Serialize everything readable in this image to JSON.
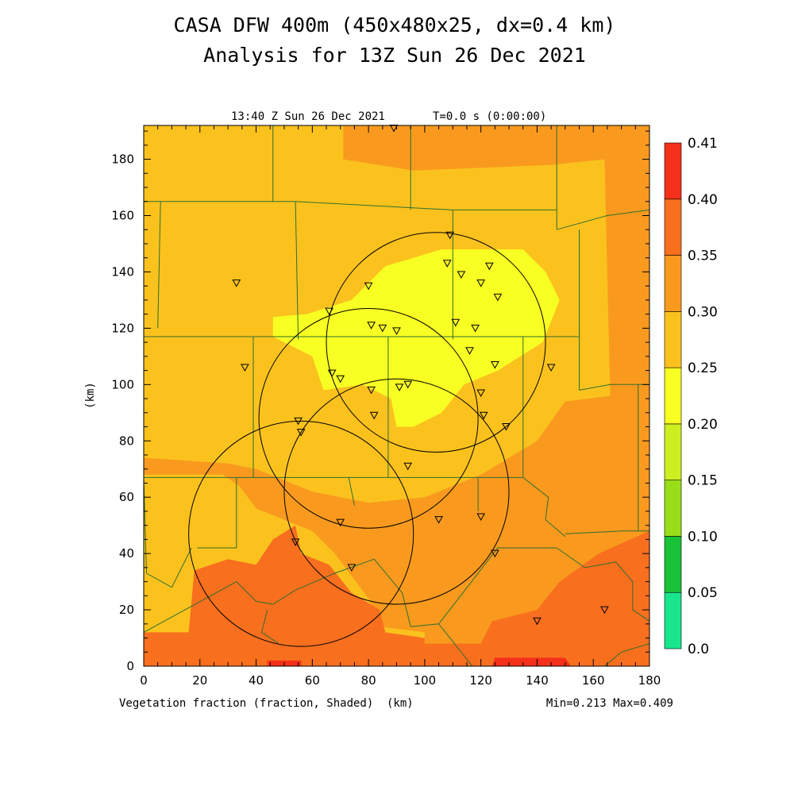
{
  "title_line1": "CASA DFW 400m (450x480x25, dx=0.4 km)",
  "title_line2": "Analysis for 13Z Sun 26 Dec 2021",
  "timestamp": "13:40 Z Sun 26 Dec 2021",
  "time_info": "T=0.0 s (0:00:00)",
  "field_label": "Vegetation fraction (fraction, Shaded)",
  "xunit_label": "(km)",
  "minmax": "Min=0.213 Max=0.409",
  "colors": {
    "bins": [
      "#19e68c",
      "#19c237",
      "#99de19",
      "#cdef22",
      "#f8ff22",
      "#fbc21e",
      "#f99a1e",
      "#f86f1e",
      "#f4301a"
    ],
    "border": "#2f6e2c",
    "range_ring": "#000000"
  },
  "chart_data": {
    "type": "heatmap",
    "xlabel": "(km)",
    "ylabel": "(km)",
    "xlim": [
      0,
      180
    ],
    "ylim": [
      0,
      192
    ],
    "xticks": [
      "0",
      "20",
      "40",
      "60",
      "80",
      "100",
      "120",
      "140",
      "160",
      "180"
    ],
    "yticks": [
      "0",
      "20",
      "40",
      "60",
      "80",
      "100",
      "120",
      "140",
      "160",
      "180"
    ],
    "colorbar_levels": [
      "0.0",
      "0.05",
      "0.10",
      "0.15",
      "0.20",
      "0.25",
      "0.30",
      "0.35",
      "0.40",
      "0.41"
    ],
    "field_min": 0.213,
    "field_max": 0.409,
    "regions": [
      {
        "level": "0.25-0.30",
        "poly": [
          [
            0,
            192
          ],
          [
            180,
            192
          ],
          [
            180,
            0
          ],
          [
            0,
            0
          ]
        ]
      },
      {
        "level": "0.30-0.35",
        "poly": [
          [
            71,
            192
          ],
          [
            180,
            192
          ],
          [
            180,
            0
          ],
          [
            100,
            0
          ],
          [
            100,
            12
          ],
          [
            84,
            14
          ],
          [
            80,
            24
          ],
          [
            68,
            40
          ],
          [
            60,
            48
          ],
          [
            40,
            56
          ],
          [
            34,
            64
          ],
          [
            28,
            68
          ],
          [
            0,
            68
          ],
          [
            0,
            0
          ],
          [
            0,
            192
          ],
          [
            71,
            192
          ]
        ]
      },
      {
        "level": "0.25-0.30",
        "poly": [
          [
            0,
            192
          ],
          [
            71,
            192
          ],
          [
            71,
            180
          ],
          [
            96,
            176
          ],
          [
            145,
            178
          ],
          [
            164,
            180
          ],
          [
            166,
            96
          ],
          [
            150,
            94
          ],
          [
            140,
            80
          ],
          [
            120,
            68
          ],
          [
            100,
            60
          ],
          [
            80,
            58
          ],
          [
            60,
            62
          ],
          [
            40,
            70
          ],
          [
            30,
            72
          ],
          [
            0,
            74
          ]
        ]
      },
      {
        "level": "0.20-0.25",
        "poly": [
          [
            58,
            125
          ],
          [
            74,
            130
          ],
          [
            86,
            142
          ],
          [
            106,
            148
          ],
          [
            135,
            148
          ],
          [
            143,
            140
          ],
          [
            148,
            130
          ],
          [
            142,
            115
          ],
          [
            126,
            105
          ],
          [
            114,
            100
          ],
          [
            106,
            90
          ],
          [
            96,
            85
          ],
          [
            90,
            85
          ],
          [
            88,
            95
          ],
          [
            78,
            100
          ],
          [
            64,
            98
          ],
          [
            60,
            110
          ],
          [
            46,
            117
          ],
          [
            46,
            124
          ]
        ]
      },
      {
        "level": "0.35-0.40",
        "poly": [
          [
            0,
            0
          ],
          [
            0,
            12
          ],
          [
            16,
            12
          ],
          [
            18,
            34
          ],
          [
            30,
            38
          ],
          [
            40,
            36
          ],
          [
            46,
            45
          ],
          [
            54,
            50
          ],
          [
            56,
            40
          ],
          [
            66,
            36
          ],
          [
            74,
            26
          ],
          [
            84,
            20
          ],
          [
            86,
            12
          ],
          [
            100,
            10
          ],
          [
            100,
            8
          ],
          [
            120,
            8
          ],
          [
            124,
            16
          ],
          [
            140,
            20
          ],
          [
            148,
            30
          ],
          [
            162,
            40
          ],
          [
            180,
            48
          ],
          [
            180,
            0
          ]
        ]
      },
      {
        "level": "0.40-0.41",
        "poly": [
          [
            44,
            0
          ],
          [
            44,
            2
          ],
          [
            56,
            2
          ],
          [
            56,
            0
          ]
        ]
      },
      {
        "level": "0.40-0.41",
        "poly": [
          [
            124,
            0
          ],
          [
            125,
            3
          ],
          [
            150,
            3
          ],
          [
            152,
            0
          ]
        ]
      }
    ],
    "station_markers": [
      [
        109,
        153
      ],
      [
        33,
        136
      ],
      [
        66,
        126
      ],
      [
        80,
        135
      ],
      [
        108,
        143
      ],
      [
        113,
        139
      ],
      [
        120,
        136
      ],
      [
        123,
        142
      ],
      [
        126,
        131
      ],
      [
        81,
        121
      ],
      [
        85,
        120
      ],
      [
        90,
        119
      ],
      [
        111,
        122
      ],
      [
        118,
        120
      ],
      [
        36,
        106
      ],
      [
        67,
        104
      ],
      [
        70,
        102
      ],
      [
        116,
        112
      ],
      [
        125,
        107
      ],
      [
        145,
        106
      ],
      [
        81,
        98
      ],
      [
        94,
        100
      ],
      [
        91,
        99
      ],
      [
        120,
        97
      ],
      [
        121,
        89
      ],
      [
        82,
        89
      ],
      [
        129,
        85
      ],
      [
        55,
        87
      ],
      [
        56,
        83
      ],
      [
        94,
        71
      ],
      [
        70,
        51
      ],
      [
        105,
        52
      ],
      [
        120,
        53
      ],
      [
        54,
        44
      ],
      [
        74,
        35
      ],
      [
        125,
        40
      ],
      [
        140,
        16
      ],
      [
        164,
        20
      ],
      [
        89,
        191
      ]
    ],
    "range_rings": [
      {
        "center_x": 104,
        "center_y": 115,
        "radius_km": 39
      },
      {
        "center_x": 80,
        "center_y": 88,
        "radius_km": 39
      },
      {
        "center_x": 90,
        "center_y": 62,
        "radius_km": 40
      },
      {
        "center_x": 56,
        "center_y": 47,
        "radius_km": 40
      }
    ],
    "county_borders": [
      [
        [
          46,
          192
        ],
        [
          46,
          165
        ]
      ],
      [
        [
          0,
          165
        ],
        [
          54,
          165
        ]
      ],
      [
        [
          54,
          165
        ],
        [
          110,
          162
        ]
      ],
      [
        [
          110,
          162
        ],
        [
          147,
          162
        ]
      ],
      [
        [
          95,
          192
        ],
        [
          95,
          162
        ]
      ],
      [
        [
          147,
          192
        ],
        [
          147,
          155
        ]
      ],
      [
        [
          147,
          155
        ],
        [
          165,
          160
        ],
        [
          180,
          162
        ]
      ],
      [
        [
          6,
          165
        ],
        [
          5,
          120
        ]
      ],
      [
        [
          54,
          165
        ],
        [
          55,
          116
        ]
      ],
      [
        [
          110,
          162
        ],
        [
          110,
          116
        ]
      ],
      [
        [
          155,
          155
        ],
        [
          155,
          118
        ]
      ],
      [
        [
          0,
          117
        ],
        [
          155,
          117
        ]
      ],
      [
        [
          39,
          117
        ],
        [
          39,
          67
        ]
      ],
      [
        [
          87,
          117
        ],
        [
          87,
          67
        ]
      ],
      [
        [
          135,
          117
        ],
        [
          135,
          67
        ]
      ],
      [
        [
          155,
          118
        ],
        [
          155,
          98
        ]
      ],
      [
        [
          155,
          98
        ],
        [
          166,
          100
        ],
        [
          180,
          100
        ]
      ],
      [
        [
          0,
          67
        ],
        [
          135,
          67
        ]
      ],
      [
        [
          135,
          67
        ],
        [
          144,
          60
        ],
        [
          143,
          52
        ],
        [
          150,
          46
        ]
      ],
      [
        [
          150,
          47
        ],
        [
          170,
          48
        ],
        [
          180,
          48
        ]
      ],
      [
        [
          176,
          100
        ],
        [
          176,
          48
        ]
      ],
      [
        [
          0,
          67
        ],
        [
          1,
          33
        ]
      ],
      [
        [
          33,
          67
        ],
        [
          33,
          42
        ],
        [
          19,
          42
        ]
      ],
      [
        [
          1,
          33
        ],
        [
          10,
          28
        ]
      ],
      [
        [
          10,
          28
        ],
        [
          17,
          42
        ]
      ],
      [
        [
          0,
          12
        ],
        [
          33,
          30
        ]
      ],
      [
        [
          33,
          30
        ],
        [
          40,
          23
        ],
        [
          46,
          22
        ]
      ],
      [
        [
          46,
          22
        ],
        [
          54,
          27
        ]
      ],
      [
        [
          54,
          27
        ],
        [
          68,
          33
        ],
        [
          82,
          38
        ]
      ],
      [
        [
          82,
          38
        ],
        [
          92,
          26
        ],
        [
          95,
          14
        ]
      ],
      [
        [
          95,
          14
        ],
        [
          105,
          15
        ],
        [
          126,
          42
        ],
        [
          147,
          42
        ]
      ],
      [
        [
          105,
          15
        ],
        [
          117,
          0
        ]
      ],
      [
        [
          147,
          42
        ],
        [
          157,
          35
        ]
      ],
      [
        [
          157,
          35
        ],
        [
          168,
          37
        ],
        [
          174,
          30
        ],
        [
          174,
          20
        ],
        [
          180,
          16
        ]
      ],
      [
        [
          44,
          20
        ],
        [
          42,
          12
        ],
        [
          48,
          8
        ]
      ],
      [
        [
          164,
          0
        ],
        [
          170,
          5
        ],
        [
          180,
          8
        ]
      ],
      [
        [
          73,
          67
        ],
        [
          75,
          57
        ]
      ],
      [
        [
          119,
          67
        ],
        [
          119,
          55
        ]
      ]
    ]
  }
}
